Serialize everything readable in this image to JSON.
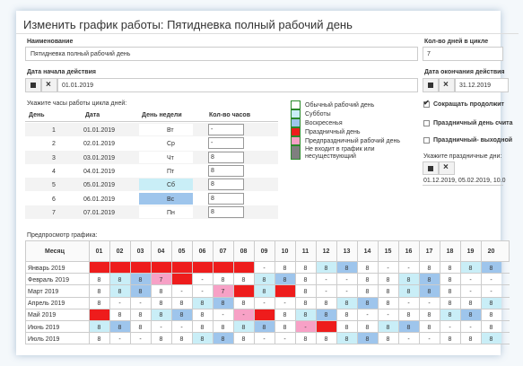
{
  "header": {
    "title": "Изменить график работы: Пятидневка полный рабочий день"
  },
  "form": {
    "name_label": "Наименование",
    "name_value": "Пятидневка полный рабочий день",
    "cycle_label": "Кол-во дней в цикле",
    "cycle_value": "7",
    "start_label": "Дата начала действия",
    "start_value": "01.01.2019",
    "end_label": "Дата окончания действия",
    "end_value": "31.12.2019"
  },
  "cycle": {
    "caption": "Укажите часы работы цикла дней:",
    "columns": [
      "День",
      "Дата",
      "День недели",
      "Кол-во часов"
    ],
    "rows": [
      [
        "1",
        "01.01.2019",
        "Вт",
        "-"
      ],
      [
        "2",
        "02.01.2019",
        "Ср",
        "-"
      ],
      [
        "3",
        "03.01.2019",
        "Чт",
        "8"
      ],
      [
        "4",
        "04.01.2019",
        "Пт",
        "8"
      ],
      [
        "5",
        "05.01.2019",
        "Сб",
        "8"
      ],
      [
        "6",
        "06.01.2019",
        "Вс",
        "8"
      ],
      [
        "7",
        "07.01.2019",
        "Пн",
        "8"
      ]
    ],
    "weekday_fills": [
      "#ffffff",
      "#ffffff",
      "#ffffff",
      "#ffffff",
      "#c9eef7",
      "#9ec5ec",
      "#ffffff"
    ]
  },
  "legend": [
    {
      "label": "Обычный рабочий день",
      "color": "#ffffff"
    },
    {
      "label": "Субботы",
      "color": "#c9eef7"
    },
    {
      "label": "Воскресенья",
      "color": "#9ec5ec"
    },
    {
      "label": "Праздничный день",
      "color": "#ee1c1c"
    },
    {
      "label": "Предпраздничный рабочий день",
      "color": "#f7a1c6"
    },
    {
      "label": "Не входит в график или несуществующий",
      "color": "#7f7f7f"
    }
  ],
  "options": {
    "shorten": "Сокращать продолжит",
    "holiday_count": "Праздничный день счита",
    "holiday_off": "Праздничный- выходной",
    "holidays_label": "Укажите праздничные дни:",
    "holidays_value": "01.12.2019, 05.02.2019, 10.0"
  },
  "preview": {
    "caption": "Предпросмотр графика:",
    "month_header": "Месяц",
    "days": [
      "01",
      "02",
      "03",
      "04",
      "05",
      "06",
      "07",
      "08",
      "09",
      "10",
      "11",
      "12",
      "13",
      "14",
      "15",
      "16",
      "17",
      "18",
      "19",
      "20"
    ],
    "rows": [
      {
        "month": "Январь 2019",
        "cells": [
          null,
          null,
          null,
          null,
          null,
          null,
          null,
          null,
          "-",
          "8",
          "8",
          "8",
          "8",
          "8",
          "-",
          "-",
          "8",
          "8",
          "8",
          "8"
        ],
        "fills": [
          "#ee1c1c",
          "#ee1c1c",
          "#ee1c1c",
          "#ee1c1c",
          "#ee1c1c",
          "#ee1c1c",
          "#ee1c1c",
          "#ee1c1c",
          "#ffffff",
          "#ffffff",
          "#ffffff",
          "#c9eef7",
          "#9ec5ec",
          "#ffffff",
          "#ffffff",
          "#ffffff",
          "#ffffff",
          "#ffffff",
          "#c9eef7",
          "#9ec5ec"
        ]
      },
      {
        "month": "Февраль 2019",
        "cells": [
          "8",
          "8",
          "8",
          "7",
          null,
          "-",
          "8",
          "8",
          "8",
          "8",
          "8",
          "-",
          "-",
          "8",
          "8",
          "8",
          "8",
          "8",
          "-",
          "-"
        ],
        "fills": [
          "#ffffff",
          "#c9eef7",
          "#9ec5ec",
          "#f7a1c6",
          "#ee1c1c",
          "#ffffff",
          "#ffffff",
          "#ffffff",
          "#c9eef7",
          "#9ec5ec",
          "#ffffff",
          "#ffffff",
          "#ffffff",
          "#ffffff",
          "#ffffff",
          "#c9eef7",
          "#9ec5ec",
          "#ffffff",
          "#ffffff",
          "#ffffff"
        ]
      },
      {
        "month": "Март 2019",
        "cells": [
          "8",
          "8",
          "8",
          "8",
          "-",
          "-",
          "7",
          null,
          "8",
          null,
          "8",
          "-",
          "-",
          "8",
          "8",
          "8",
          "8",
          "8",
          "-",
          "-"
        ],
        "fills": [
          "#ffffff",
          "#c9eef7",
          "#9ec5ec",
          "#ffffff",
          "#ffffff",
          "#ffffff",
          "#f7a1c6",
          "#ee1c1c",
          "#c9eef7",
          "#ee1c1c",
          "#ffffff",
          "#ffffff",
          "#ffffff",
          "#ffffff",
          "#ffffff",
          "#c9eef7",
          "#9ec5ec",
          "#ffffff",
          "#ffffff",
          "#ffffff"
        ]
      },
      {
        "month": "Апрель 2019",
        "cells": [
          "8",
          "-",
          "-",
          "8",
          "8",
          "8",
          "8",
          "8",
          "-",
          "-",
          "8",
          "8",
          "8",
          "8",
          "8",
          "-",
          "-",
          "8",
          "8",
          "8"
        ],
        "fills": [
          "#ffffff",
          "#ffffff",
          "#ffffff",
          "#ffffff",
          "#ffffff",
          "#c9eef7",
          "#9ec5ec",
          "#ffffff",
          "#ffffff",
          "#ffffff",
          "#ffffff",
          "#ffffff",
          "#c9eef7",
          "#9ec5ec",
          "#ffffff",
          "#ffffff",
          "#ffffff",
          "#ffffff",
          "#ffffff",
          "#c9eef7"
        ]
      },
      {
        "month": "Май 2019",
        "cells": [
          null,
          "8",
          "8",
          "8",
          "8",
          "8",
          "-",
          "-",
          null,
          "8",
          "8",
          "8",
          "8",
          "-",
          "-",
          "8",
          "8",
          "8",
          "8",
          "8"
        ],
        "fills": [
          "#ee1c1c",
          "#ffffff",
          "#ffffff",
          "#c9eef7",
          "#9ec5ec",
          "#ffffff",
          "#ffffff",
          "#f7a1c6",
          "#ee1c1c",
          "#ffffff",
          "#c9eef7",
          "#9ec5ec",
          "#ffffff",
          "#ffffff",
          "#ffffff",
          "#ffffff",
          "#ffffff",
          "#c9eef7",
          "#9ec5ec",
          "#ffffff"
        ]
      },
      {
        "month": "Июнь 2019",
        "cells": [
          "8",
          "8",
          "8",
          "-",
          "-",
          "8",
          "8",
          "8",
          "8",
          "8",
          "-",
          null,
          "8",
          "8",
          "8",
          "8",
          "8",
          "-",
          "-",
          "8"
        ],
        "fills": [
          "#c9eef7",
          "#9ec5ec",
          "#ffffff",
          "#ffffff",
          "#ffffff",
          "#ffffff",
          "#ffffff",
          "#c9eef7",
          "#9ec5ec",
          "#ffffff",
          "#f7a1c6",
          "#ee1c1c",
          "#ffffff",
          "#ffffff",
          "#c9eef7",
          "#9ec5ec",
          "#ffffff",
          "#ffffff",
          "#ffffff",
          "#ffffff"
        ]
      },
      {
        "month": "Июль 2019",
        "cells": [
          "8",
          "-",
          "-",
          "8",
          "8",
          "8",
          "8",
          "8",
          "-",
          "-",
          "8",
          "8",
          "8",
          "8",
          "8",
          "-",
          "-",
          "8",
          "8",
          "8"
        ],
        "fills": [
          "#ffffff",
          "#ffffff",
          "#ffffff",
          "#ffffff",
          "#ffffff",
          "#c9eef7",
          "#9ec5ec",
          "#ffffff",
          "#ffffff",
          "#ffffff",
          "#ffffff",
          "#ffffff",
          "#c9eef7",
          "#9ec5ec",
          "#ffffff",
          "#ffffff",
          "#ffffff",
          "#ffffff",
          "#ffffff",
          "#c9eef7"
        ]
      }
    ]
  }
}
